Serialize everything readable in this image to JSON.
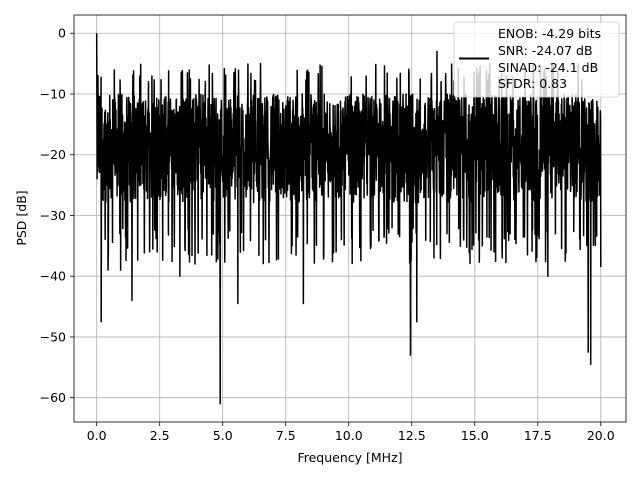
{
  "chart_data": {
    "type": "line",
    "title": "",
    "xlabel": "Frequency [MHz]",
    "ylabel": "PSD [dB]",
    "xlim": [
      -0.9,
      21.0
    ],
    "ylim": [
      -64.0,
      3.0
    ],
    "xticks": [
      0.0,
      2.5,
      5.0,
      7.5,
      10.0,
      12.5,
      15.0,
      17.5,
      20.0
    ],
    "xtick_labels": [
      "0.0",
      "2.5",
      "5.0",
      "7.5",
      "10.0",
      "12.5",
      "15.0",
      "17.5",
      "20.0"
    ],
    "yticks": [
      0,
      -10,
      -20,
      -30,
      -40,
      -50,
      -60
    ],
    "ytick_labels": [
      "0",
      "−10",
      "−20",
      "−30",
      "−40",
      "−50",
      "−60"
    ],
    "grid": true,
    "legend_position": "top-right",
    "legend_lines": [
      "ENOB: -4.29 bits",
      "SNR: -24.07 dB",
      "SINAD: -24.1 dB",
      "SFDR: 0.83"
    ],
    "series": [
      {
        "color": "#000000",
        "x_start": 0.0,
        "x_end": 20.0,
        "noise_band": [
          -28,
          -10
        ],
        "peak_start": 0.0,
        "spikes": [
          {
            "x": 0.05,
            "y": -7
          },
          {
            "x": 0.18,
            "y": -47.5
          },
          {
            "x": 0.45,
            "y": -39
          },
          {
            "x": 0.95,
            "y": -39
          },
          {
            "x": 1.4,
            "y": -44
          },
          {
            "x": 2.1,
            "y": -36
          },
          {
            "x": 3.3,
            "y": -40
          },
          {
            "x": 3.9,
            "y": -38
          },
          {
            "x": 4.9,
            "y": -61
          },
          {
            "x": 5.6,
            "y": -44.5
          },
          {
            "x": 6.7,
            "y": -34
          },
          {
            "x": 8.2,
            "y": -44.5
          },
          {
            "x": 9.5,
            "y": -36
          },
          {
            "x": 11.2,
            "y": -34
          },
          {
            "x": 12.45,
            "y": -53
          },
          {
            "x": 12.7,
            "y": -47.5
          },
          {
            "x": 13.9,
            "y": -33
          },
          {
            "x": 15.3,
            "y": -35
          },
          {
            "x": 16.4,
            "y": -33
          },
          {
            "x": 17.9,
            "y": -40
          },
          {
            "x": 18.2,
            "y": -33
          },
          {
            "x": 19.5,
            "y": -52.5
          },
          {
            "x": 19.6,
            "y": -54.5
          },
          {
            "x": 20.0,
            "y": -38.5
          }
        ],
        "highs": [
          {
            "x": 6.5,
            "y": -5
          },
          {
            "x": 13.5,
            "y": -3
          },
          {
            "x": 15.6,
            "y": -5
          },
          {
            "x": 17.0,
            "y": -5.5
          },
          {
            "x": 19.1,
            "y": -5
          },
          {
            "x": 3.6,
            "y": -6.5
          }
        ]
      }
    ]
  }
}
